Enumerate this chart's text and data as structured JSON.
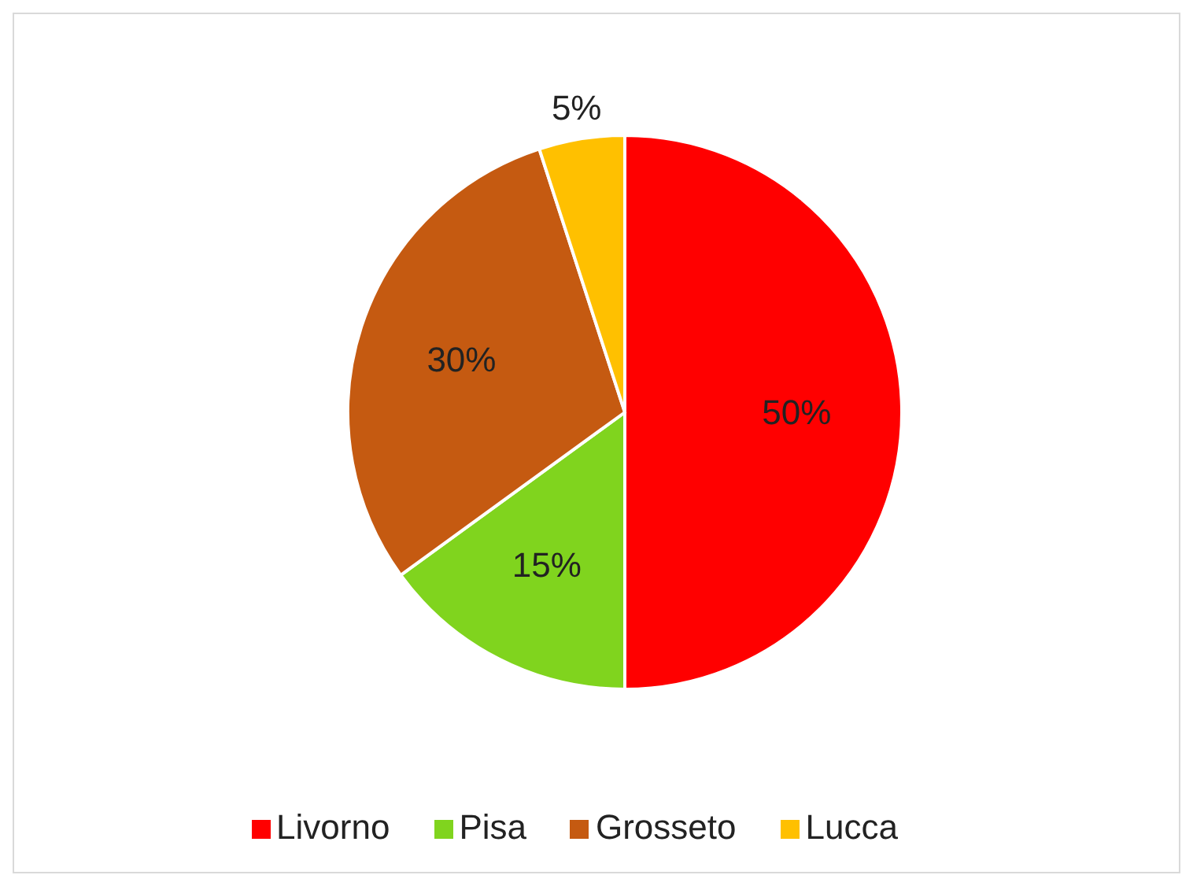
{
  "chart_data": {
    "type": "pie",
    "categories": [
      "Livorno",
      "Pisa",
      "Grosseto",
      "Lucca"
    ],
    "values": [
      50,
      15,
      30,
      5
    ],
    "value_labels": [
      "50%",
      "15%",
      "30%",
      "5%"
    ],
    "colors": [
      "#ff0000",
      "#80d41e",
      "#c55a11",
      "#ffc000"
    ],
    "legend": "bottom"
  }
}
